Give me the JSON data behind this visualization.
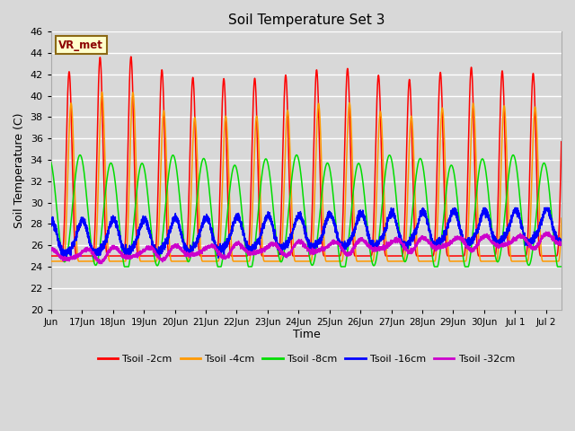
{
  "title": "Soil Temperature Set 3",
  "xlabel": "Time",
  "ylabel": "Soil Temperature (C)",
  "ylim": [
    20,
    46
  ],
  "yticks": [
    20,
    22,
    24,
    26,
    28,
    30,
    32,
    34,
    36,
    38,
    40,
    42,
    44,
    46
  ],
  "annotation": "VR_met",
  "bg_color": "#d8d8d8",
  "grid_color": "#ffffff",
  "series": [
    {
      "label": "Tsoil -2cm",
      "color": "#ff0000"
    },
    {
      "label": "Tsoil -4cm",
      "color": "#ff9900"
    },
    {
      "label": "Tsoil -8cm",
      "color": "#00dd00"
    },
    {
      "label": "Tsoil -16cm",
      "color": "#0000ff"
    },
    {
      "label": "Tsoil -32cm",
      "color": "#cc00cc"
    }
  ]
}
